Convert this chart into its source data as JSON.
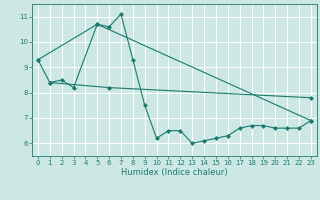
{
  "xlabel": "Humidex (Indice chaleur)",
  "xlim": [
    -0.5,
    23.5
  ],
  "ylim": [
    5.5,
    11.5
  ],
  "yticks": [
    6,
    7,
    8,
    9,
    10,
    11
  ],
  "xticks": [
    0,
    1,
    2,
    3,
    4,
    5,
    6,
    7,
    8,
    9,
    10,
    11,
    12,
    13,
    14,
    15,
    16,
    17,
    18,
    19,
    20,
    21,
    22,
    23
  ],
  "bg_color": "#cde8e4",
  "grid_color": "#ffffff",
  "line_color": "#1a7a6e",
  "series": [
    {
      "x": [
        0,
        1,
        2,
        3,
        5,
        6,
        7,
        8,
        9,
        10,
        11,
        12,
        13,
        14,
        15,
        16,
        17,
        18,
        19,
        20,
        21,
        22,
        23
      ],
      "y": [
        9.3,
        8.4,
        8.5,
        8.2,
        10.7,
        10.6,
        11.1,
        9.3,
        7.5,
        6.2,
        6.5,
        6.5,
        6.0,
        6.1,
        6.2,
        6.3,
        6.6,
        6.7,
        6.7,
        6.6,
        6.6,
        6.6,
        6.9
      ]
    },
    {
      "x": [
        0,
        5,
        23
      ],
      "y": [
        9.3,
        10.7,
        6.9
      ]
    },
    {
      "x": [
        1,
        6,
        23
      ],
      "y": [
        8.4,
        8.2,
        7.8
      ]
    }
  ]
}
